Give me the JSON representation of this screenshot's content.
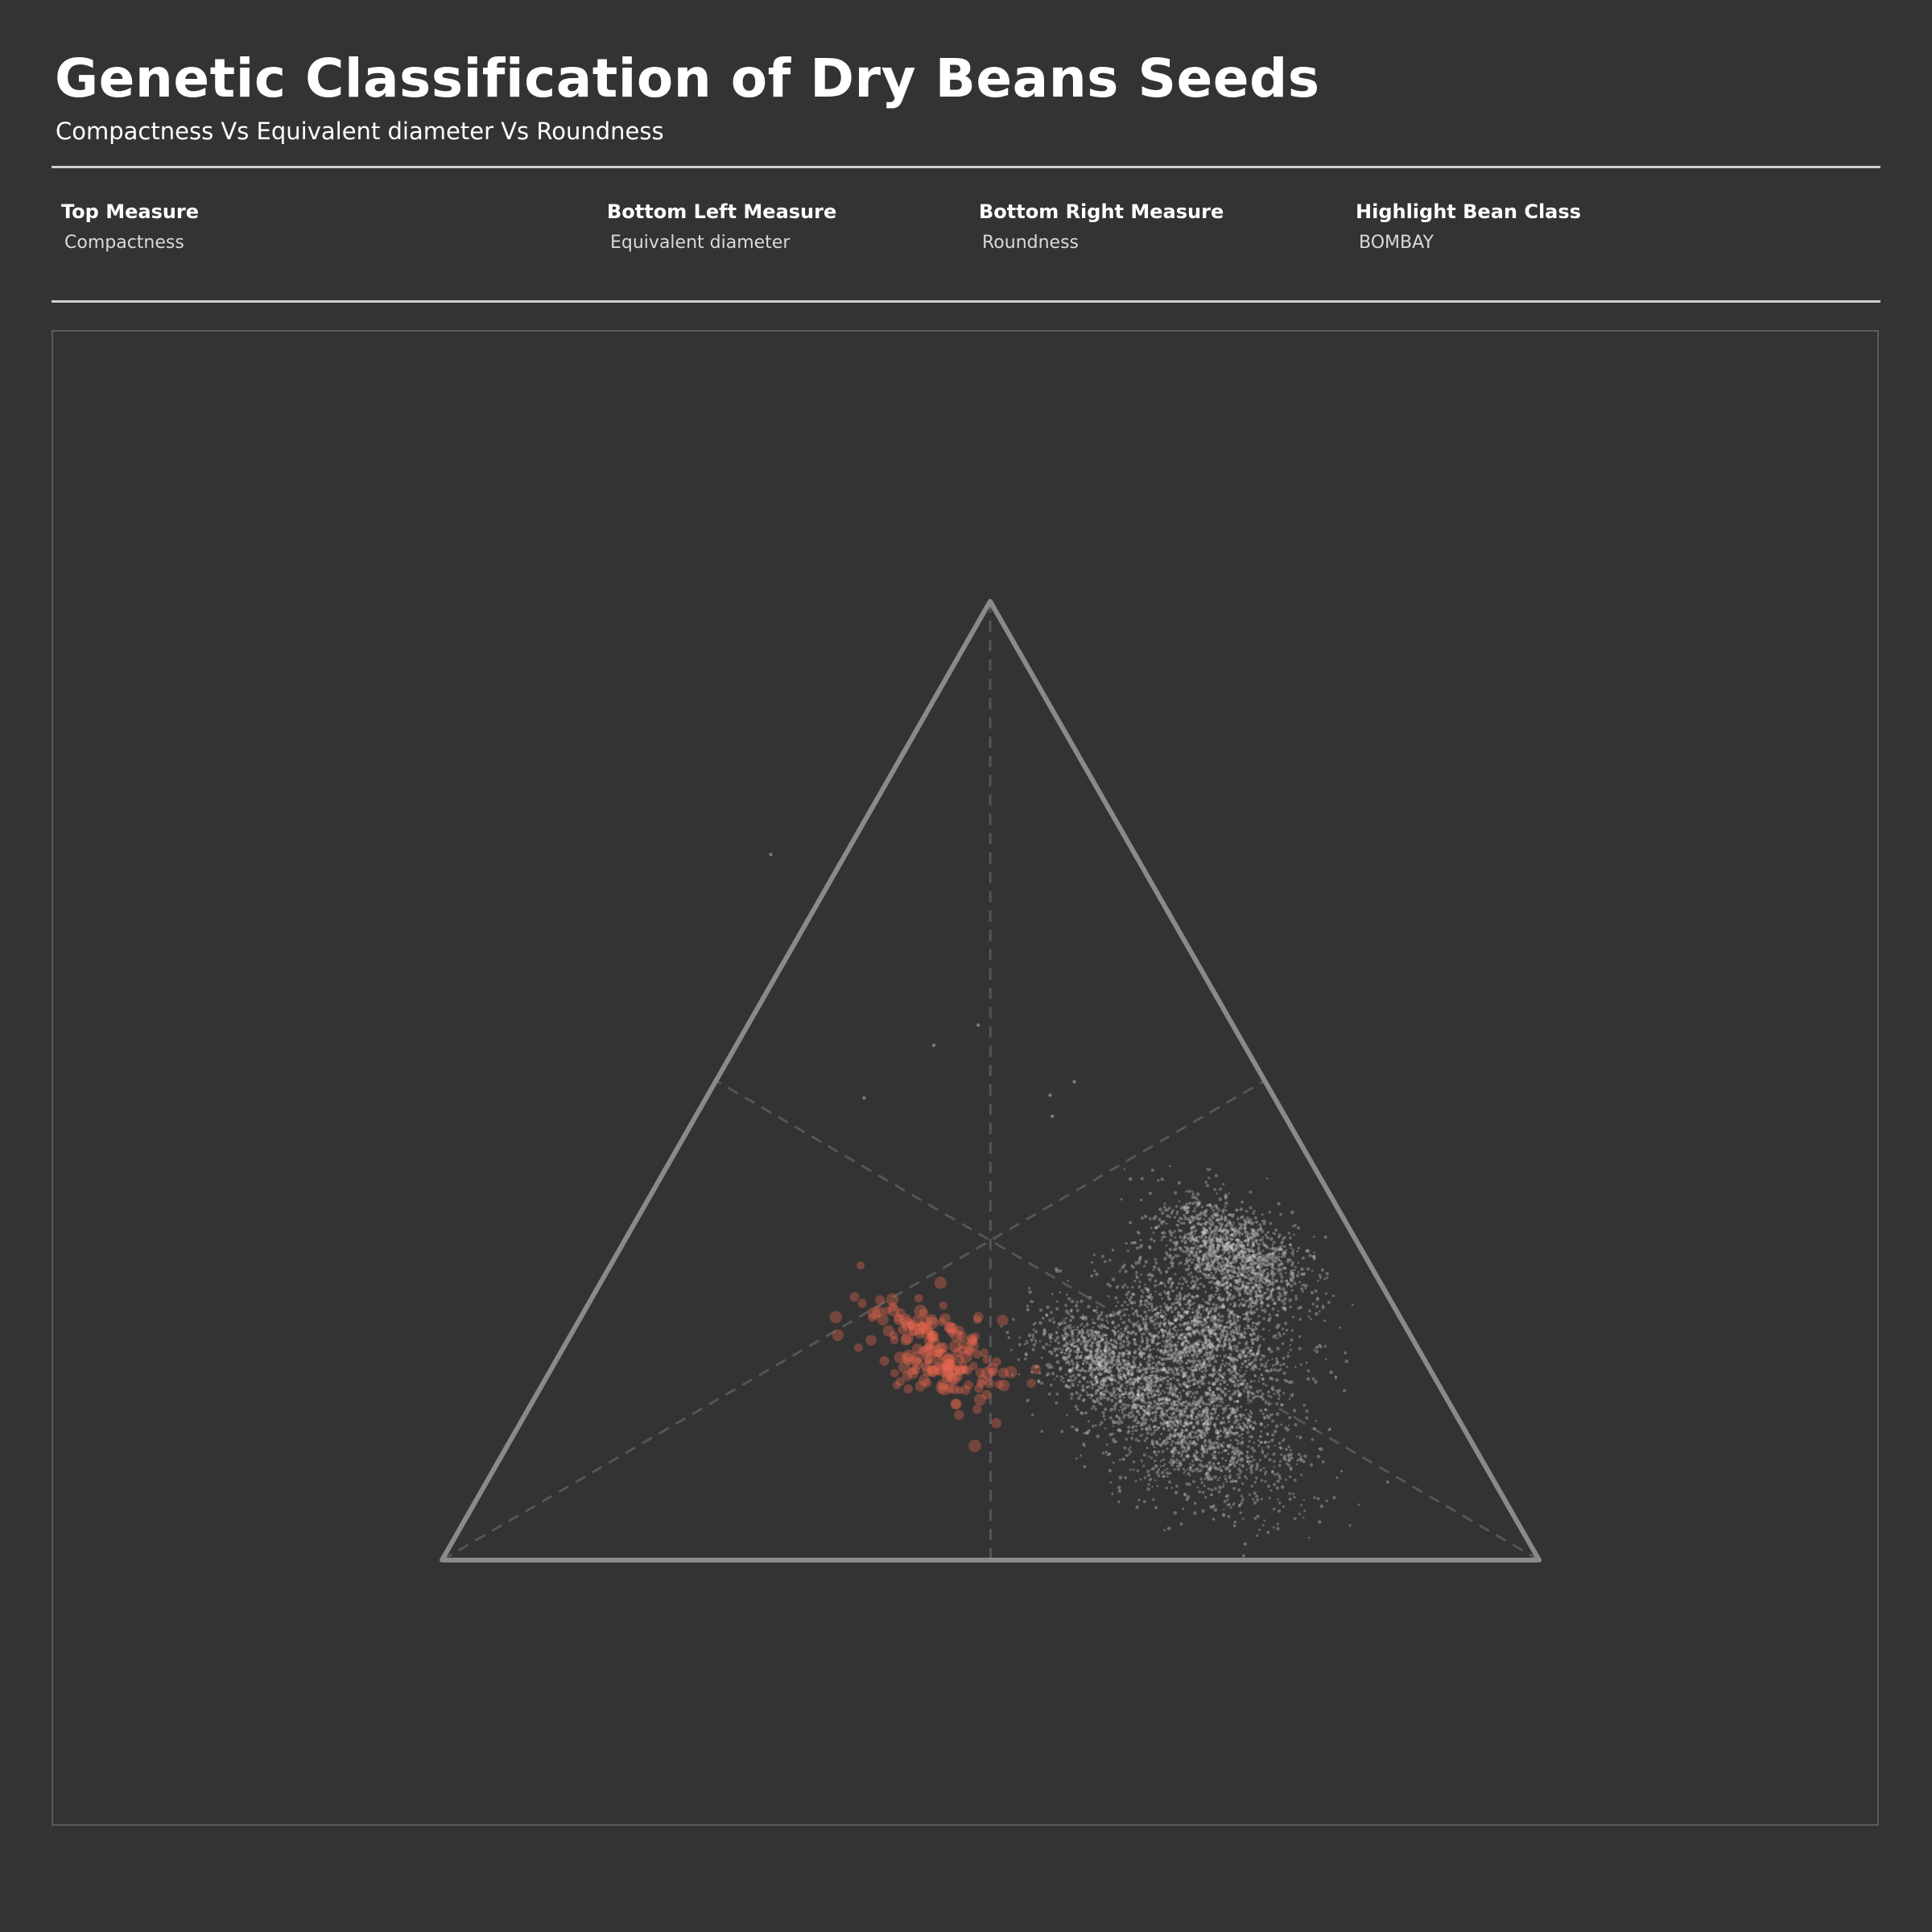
{
  "header": {
    "title": "Genetic Classification of Dry Beans Seeds",
    "subtitle": "Compactness Vs Equivalent diameter Vs Roundness"
  },
  "parameters": [
    {
      "label": "Top Measure",
      "value": "Compactness"
    },
    {
      "label": "Bottom Left Measure",
      "value": "Equivalent diameter"
    },
    {
      "label": "Bottom Right Measure",
      "value": "Roundness"
    },
    {
      "label": "Highlight Bean Class",
      "value": "BOMBAY"
    }
  ],
  "colors": {
    "background": "#333333",
    "triangle": "#8a8a8a",
    "guide": "#555555",
    "points": "#d2d2d2",
    "highlight": "#f26a50"
  },
  "chart_data": {
    "type": "scatter",
    "projection": "ternary",
    "axes": {
      "top": "Compactness",
      "bottom_left": "Equivalent diameter",
      "bottom_right": "Roundness"
    },
    "highlight_class": "BOMBAY",
    "legend": "none",
    "grid": "median guide lines (dashed)",
    "note_on_values": "Point compositions are fractions (top, bottom_left, bottom_right) summing to 1, estimated from the plotted positions; the dense bulk is represented by clusters.",
    "clusters": [
      {
        "class": "BOMBAY",
        "highlight": true,
        "center": [
          0.217,
          0.443,
          0.34
        ],
        "spread": [
          0.028,
          0.028,
          0.028
        ],
        "count": 180
      },
      {
        "class": "other",
        "highlight": false,
        "center": [
          0.32,
          0.118,
          0.562
        ],
        "spread": [
          0.03,
          0.03,
          0.03
        ],
        "count": 1400
      },
      {
        "class": "other",
        "highlight": false,
        "center": [
          0.235,
          0.192,
          0.573
        ],
        "spread": [
          0.035,
          0.035,
          0.035
        ],
        "count": 1300
      },
      {
        "class": "other",
        "highlight": false,
        "center": [
          0.14,
          0.247,
          0.613
        ],
        "spread": [
          0.042,
          0.042,
          0.042
        ],
        "count": 1500
      },
      {
        "class": "other",
        "highlight": false,
        "center": [
          0.206,
          0.294,
          0.5
        ],
        "spread": [
          0.028,
          0.028,
          0.028
        ],
        "count": 900
      }
    ],
    "outliers": [
      [
        0.736,
        0.332,
        -0.068
      ],
      [
        0.558,
        0.232,
        0.21
      ],
      [
        0.537,
        0.283,
        0.18
      ],
      [
        0.482,
        0.374,
        0.144
      ],
      [
        0.485,
        0.203,
        0.312
      ],
      [
        0.463,
        0.212,
        0.325
      ],
      [
        0.499,
        0.174,
        0.327
      ],
      [
        0.047,
        0.264,
        0.689
      ]
    ]
  }
}
